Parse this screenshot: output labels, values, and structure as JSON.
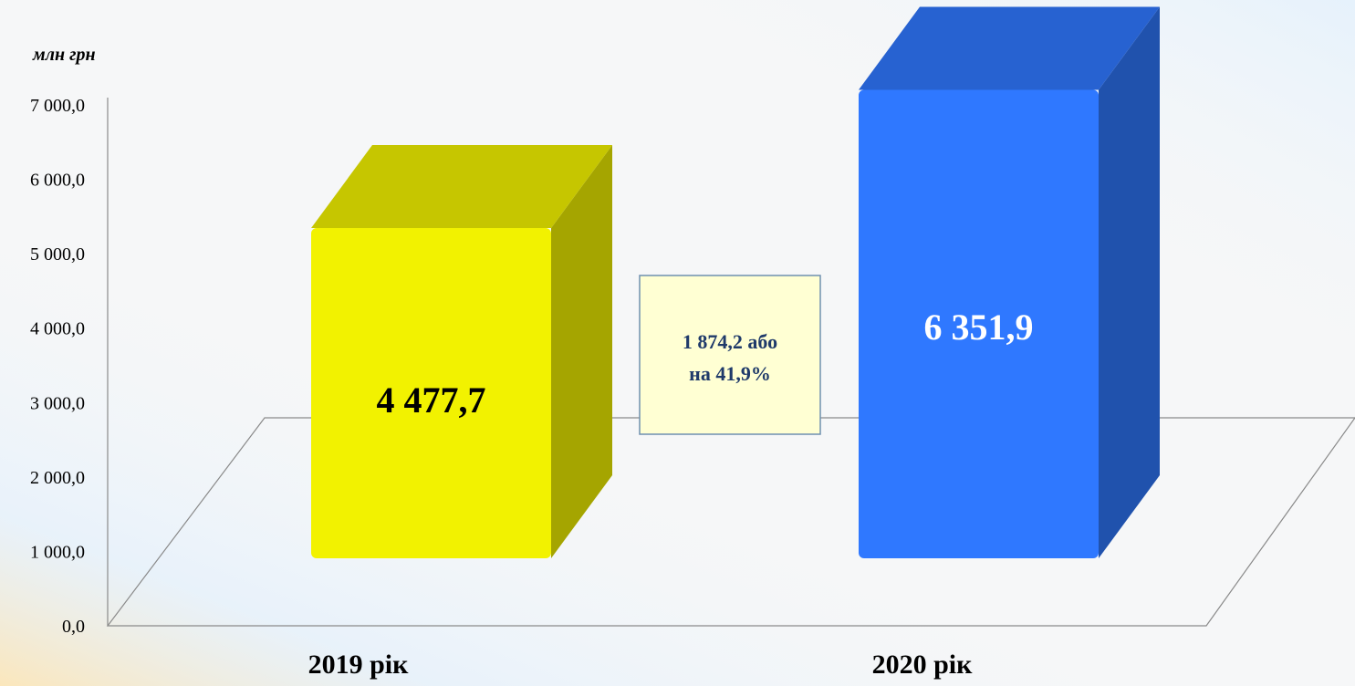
{
  "chart_data": {
    "type": "bar",
    "unit_label": "млн грн",
    "categories": [
      "2019 рік",
      "2020 рік"
    ],
    "values": [
      4477.7,
      6351.9
    ],
    "data_labels": [
      "4 477,7",
      "6 351,9"
    ],
    "bar_colors": [
      "#f2f200",
      "#2f78ff"
    ],
    "ylim": [
      0,
      7000
    ],
    "y_ticks": [
      {
        "value": 0,
        "label": "0,0"
      },
      {
        "value": 1000,
        "label": "1 000,0"
      },
      {
        "value": 2000,
        "label": "2 000,0"
      },
      {
        "value": 3000,
        "label": "3 000,0"
      },
      {
        "value": 4000,
        "label": "4 000,0"
      },
      {
        "value": 5000,
        "label": "5 000,0"
      },
      {
        "value": 6000,
        "label": "6 000,0"
      },
      {
        "value": 7000,
        "label": "7 000,0"
      }
    ],
    "grid": false,
    "annotation": {
      "line1": "1 874,2 або",
      "line2": "на 41,9%"
    }
  }
}
